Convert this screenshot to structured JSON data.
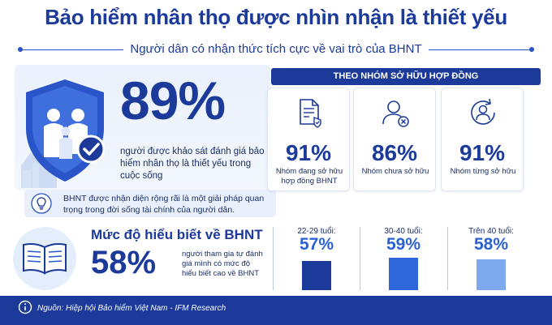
{
  "title": "Bảo hiểm nhân thọ được nhìn nhận là thiết yếu",
  "subtitle": "Người dân có nhận thức tích cực về vai trò của BHNT",
  "headline": {
    "value": "89%",
    "description": "người được khảo sát đánh giá bảo hiểm nhân thọ là thiết yếu trong cuộc sống"
  },
  "note": "BHNT được nhận diện rộng rãi là một giải pháp quan trọng trong đời sống tài chính của người dân.",
  "ownership": {
    "header": "THEO NHÓM SỞ HỮU HỢP ĐỒNG",
    "cards": [
      {
        "icon": "document-check-icon",
        "value": "91%",
        "label": "Nhóm đang sở hữu hợp đồng BHNT"
      },
      {
        "icon": "user-x-icon",
        "value": "86%",
        "label": "Nhóm chưa sở hữu"
      },
      {
        "icon": "user-refresh-icon",
        "value": "91%",
        "label": "Nhóm từng sở hữu"
      }
    ]
  },
  "understanding": {
    "title": "Mức độ hiểu biết về BHNT",
    "value": "58%",
    "description": "người tham gia tự đánh giá mình có mức độ hiểu biết cao về BHNT"
  },
  "chart_data": [
    {
      "type": "bar",
      "categories": [
        "Nhóm đang sở hữu hợp đồng BHNT",
        "Nhóm chưa sở hữu",
        "Nhóm từng sở hữu"
      ],
      "values": [
        91,
        86,
        91
      ],
      "title": "THEO NHÓM SỞ HỮU HỢP ĐỒNG"
    },
    {
      "type": "bar",
      "categories": [
        "22-29 tuổi:",
        "30-40 tuổi:",
        "Trên 40 tuổi:"
      ],
      "values": [
        57,
        59,
        58
      ],
      "labels": [
        "57%",
        "59%",
        "58%"
      ],
      "colors": [
        "#1b3a9a",
        "#2f66dc",
        "#7fa9ef"
      ]
    }
  ],
  "source": "Nguồn: Hiệp hội Bảo hiểm Việt Nam - IFM Research",
  "colors": {
    "primary": "#1b3a9a",
    "accent": "#2a62d4",
    "light": "#e9f0fb"
  }
}
